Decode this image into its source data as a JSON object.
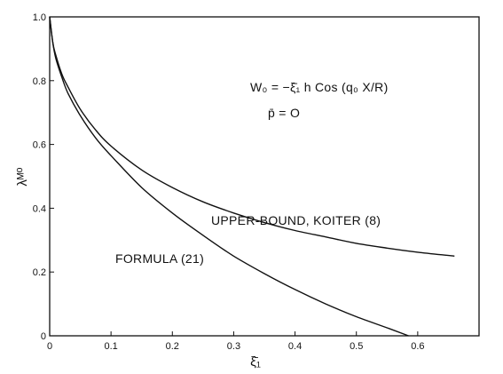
{
  "chart_data": {
    "type": "line",
    "xlabel": "ξ̄₁",
    "ylabel": "λᴹ⁰",
    "xlim": [
      0,
      0.7
    ],
    "ylim": [
      0,
      1.0
    ],
    "x_ticks": [
      "0",
      "0.1",
      "0.2",
      "0.3",
      "0.4",
      "0.5",
      "0.6"
    ],
    "y_ticks": [
      "0",
      "0.2",
      "0.4",
      "0.6",
      "0.8",
      "1.0"
    ],
    "grid": false,
    "legend": "none",
    "annotations": {
      "equation": "W₀ = −ξ̄₁ h Cos (q₀ X/R)",
      "condition": "p̄ = O"
    },
    "series": [
      {
        "name": "UPPER-BOUND, KOITER (8)",
        "x": [
          0,
          0.005,
          0.01,
          0.02,
          0.03,
          0.05,
          0.075,
          0.1,
          0.15,
          0.2,
          0.25,
          0.3,
          0.35,
          0.4,
          0.45,
          0.5,
          0.55,
          0.6,
          0.66
        ],
        "y": [
          1.0,
          0.92,
          0.88,
          0.82,
          0.78,
          0.71,
          0.645,
          0.595,
          0.52,
          0.465,
          0.42,
          0.385,
          0.355,
          0.33,
          0.31,
          0.29,
          0.275,
          0.262,
          0.25
        ]
      },
      {
        "name": "FORMULA (21)",
        "x": [
          0,
          0.005,
          0.01,
          0.02,
          0.03,
          0.05,
          0.075,
          0.1,
          0.15,
          0.2,
          0.25,
          0.3,
          0.35,
          0.4,
          0.45,
          0.5,
          0.55,
          0.585
        ],
        "y": [
          1.0,
          0.92,
          0.87,
          0.81,
          0.76,
          0.69,
          0.62,
          0.565,
          0.465,
          0.385,
          0.315,
          0.25,
          0.195,
          0.145,
          0.1,
          0.06,
          0.025,
          0.0
        ]
      }
    ]
  }
}
